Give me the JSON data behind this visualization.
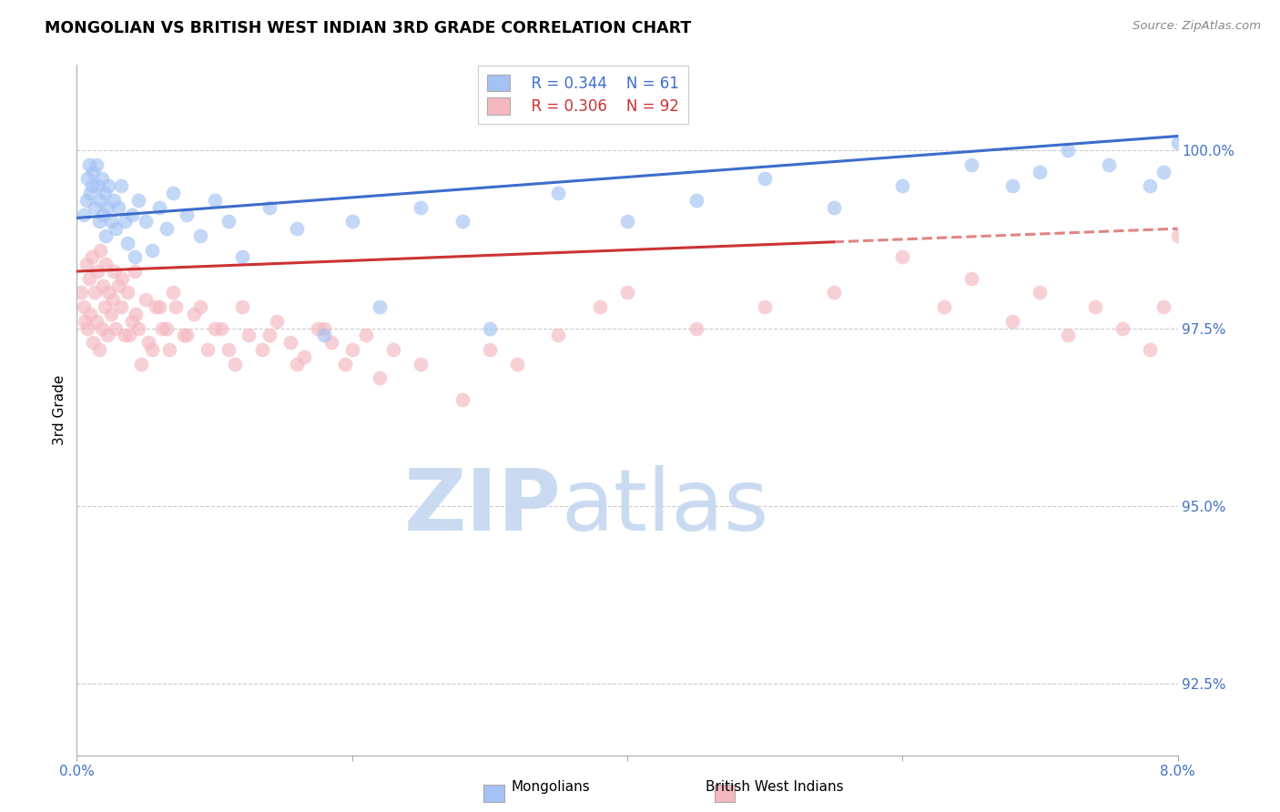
{
  "title": "MONGOLIAN VS BRITISH WEST INDIAN 3RD GRADE CORRELATION CHART",
  "source": "Source: ZipAtlas.com",
  "ylabel": "3rd Grade",
  "xlim": [
    0.0,
    8.0
  ],
  "ylim": [
    91.5,
    101.2
  ],
  "ytick_values": [
    92.5,
    95.0,
    97.5,
    100.0
  ],
  "ytick_labels": [
    "92.5%",
    "95.0%",
    "97.5%",
    "100.0%"
  ],
  "legend_r_blue": "R = 0.344",
  "legend_n_blue": "N = 61",
  "legend_r_pink": "R = 0.306",
  "legend_n_pink": "N = 92",
  "blue_scatter_color": "#a4c2f4",
  "pink_scatter_color": "#f4b8c1",
  "blue_line_color": "#3d6dcc",
  "pink_line_color": "#cc3333",
  "axis_color": "#4472c4",
  "watermark_color": "#ccddf5",
  "blue_line_x0": 0.0,
  "blue_line_y0": 99.05,
  "blue_line_x1": 8.0,
  "blue_line_y1": 100.2,
  "pink_line_x0": 0.0,
  "pink_line_y0": 98.3,
  "pink_line_x1": 8.0,
  "pink_line_y1": 98.9,
  "pink_dash_x0": 5.5,
  "pink_dash_x1": 8.0,
  "mongolian_x": [
    0.05,
    0.07,
    0.08,
    0.09,
    0.1,
    0.11,
    0.12,
    0.13,
    0.14,
    0.15,
    0.16,
    0.17,
    0.18,
    0.19,
    0.2,
    0.21,
    0.22,
    0.23,
    0.25,
    0.27,
    0.28,
    0.3,
    0.32,
    0.35,
    0.37,
    0.4,
    0.42,
    0.45,
    0.5,
    0.55,
    0.6,
    0.65,
    0.7,
    0.8,
    0.9,
    1.0,
    1.1,
    1.2,
    1.4,
    1.6,
    1.8,
    2.0,
    2.2,
    2.5,
    2.8,
    3.0,
    3.5,
    4.0,
    4.5,
    5.0,
    5.5,
    6.0,
    6.5,
    6.8,
    7.0,
    7.2,
    7.5,
    7.8,
    7.9,
    8.0,
    8.05
  ],
  "mongolian_y": [
    99.1,
    99.3,
    99.6,
    99.8,
    99.4,
    99.5,
    99.7,
    99.2,
    99.8,
    99.5,
    99.0,
    99.3,
    99.6,
    99.1,
    99.4,
    98.8,
    99.2,
    99.5,
    99.0,
    99.3,
    98.9,
    99.2,
    99.5,
    99.0,
    98.7,
    99.1,
    98.5,
    99.3,
    99.0,
    98.6,
    99.2,
    98.9,
    99.4,
    99.1,
    98.8,
    99.3,
    99.0,
    98.5,
    99.2,
    98.9,
    97.4,
    99.0,
    97.8,
    99.2,
    99.0,
    97.5,
    99.4,
    99.0,
    99.3,
    99.6,
    99.2,
    99.5,
    99.8,
    99.5,
    99.7,
    100.0,
    99.8,
    99.5,
    99.7,
    100.1,
    100.2
  ],
  "bwi_x": [
    0.03,
    0.05,
    0.07,
    0.08,
    0.09,
    0.1,
    0.11,
    0.12,
    0.13,
    0.14,
    0.15,
    0.16,
    0.17,
    0.18,
    0.19,
    0.2,
    0.21,
    0.22,
    0.23,
    0.25,
    0.27,
    0.28,
    0.3,
    0.32,
    0.35,
    0.37,
    0.4,
    0.42,
    0.45,
    0.5,
    0.55,
    0.6,
    0.65,
    0.7,
    0.8,
    0.9,
    1.0,
    1.1,
    1.2,
    1.4,
    1.6,
    1.8,
    2.0,
    2.2,
    2.5,
    2.8,
    3.0,
    3.2,
    3.5,
    3.8,
    4.0,
    4.5,
    5.0,
    5.5,
    6.0,
    6.3,
    6.5,
    6.8,
    7.0,
    7.2,
    7.4,
    7.6,
    7.8,
    7.9,
    8.0,
    8.1,
    0.06,
    0.26,
    0.33,
    0.38,
    0.43,
    0.47,
    0.52,
    0.57,
    0.62,
    0.67,
    0.72,
    0.78,
    0.85,
    0.95,
    1.05,
    1.15,
    1.25,
    1.35,
    1.45,
    1.55,
    1.65,
    1.75,
    1.85,
    1.95,
    2.1,
    2.3
  ],
  "bwi_y": [
    98.0,
    97.8,
    98.4,
    97.5,
    98.2,
    97.7,
    98.5,
    97.3,
    98.0,
    97.6,
    98.3,
    97.2,
    98.6,
    97.5,
    98.1,
    97.8,
    98.4,
    97.4,
    98.0,
    97.7,
    98.3,
    97.5,
    98.1,
    97.8,
    97.4,
    98.0,
    97.6,
    98.3,
    97.5,
    97.9,
    97.2,
    97.8,
    97.5,
    98.0,
    97.4,
    97.8,
    97.5,
    97.2,
    97.8,
    97.4,
    97.0,
    97.5,
    97.2,
    96.8,
    97.0,
    96.5,
    97.2,
    97.0,
    97.4,
    97.8,
    98.0,
    97.5,
    97.8,
    98.0,
    98.5,
    97.8,
    98.2,
    97.6,
    98.0,
    97.4,
    97.8,
    97.5,
    97.2,
    97.8,
    98.8,
    98.2,
    97.6,
    97.9,
    98.2,
    97.4,
    97.7,
    97.0,
    97.3,
    97.8,
    97.5,
    97.2,
    97.8,
    97.4,
    97.7,
    97.2,
    97.5,
    97.0,
    97.4,
    97.2,
    97.6,
    97.3,
    97.1,
    97.5,
    97.3,
    97.0,
    97.4,
    97.2
  ]
}
